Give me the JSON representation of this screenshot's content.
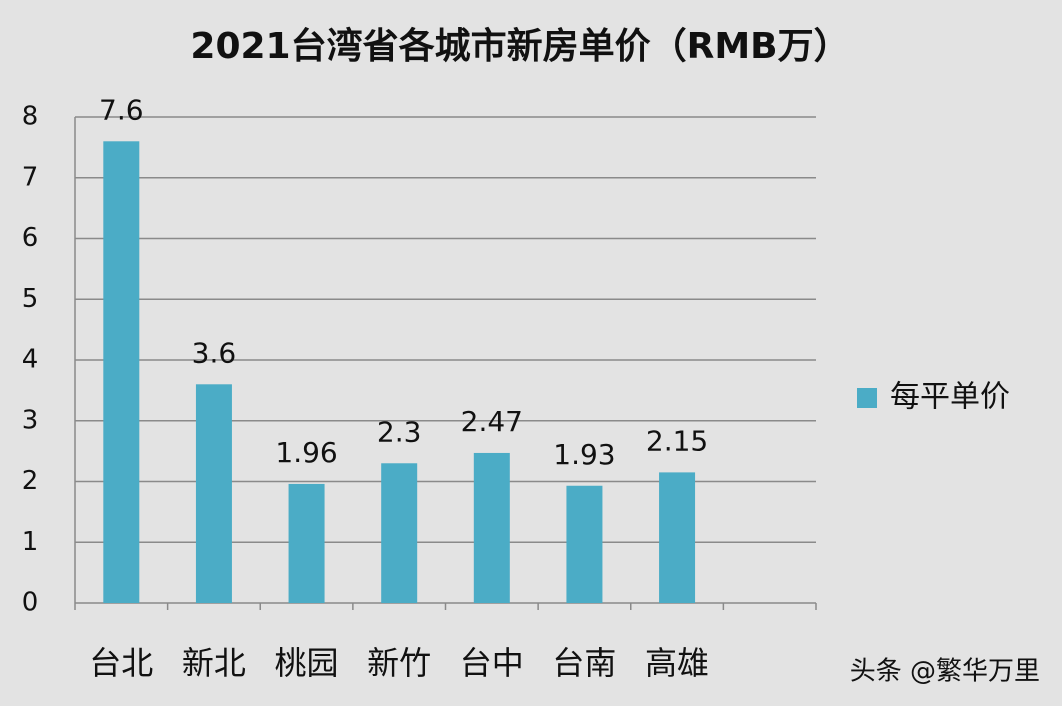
{
  "chart_data": {
    "type": "bar",
    "title": "2021台湾省各城市新房单价（RMB万）",
    "categories": [
      "台北",
      "新北",
      "桃园",
      "新竹",
      "台中",
      "台南",
      "高雄",
      null
    ],
    "series": [
      {
        "name": "每平单价",
        "color": "#4bacc6",
        "values": [
          7.6,
          3.6,
          1.96,
          2.3,
          2.47,
          1.93,
          2.15,
          null
        ]
      }
    ],
    "ylim": [
      0,
      8
    ],
    "yticks": [
      0,
      1,
      2,
      3,
      4,
      5,
      6,
      7,
      8
    ],
    "grid": true,
    "legend": "right",
    "watermark": "头条 @繁华万里"
  }
}
